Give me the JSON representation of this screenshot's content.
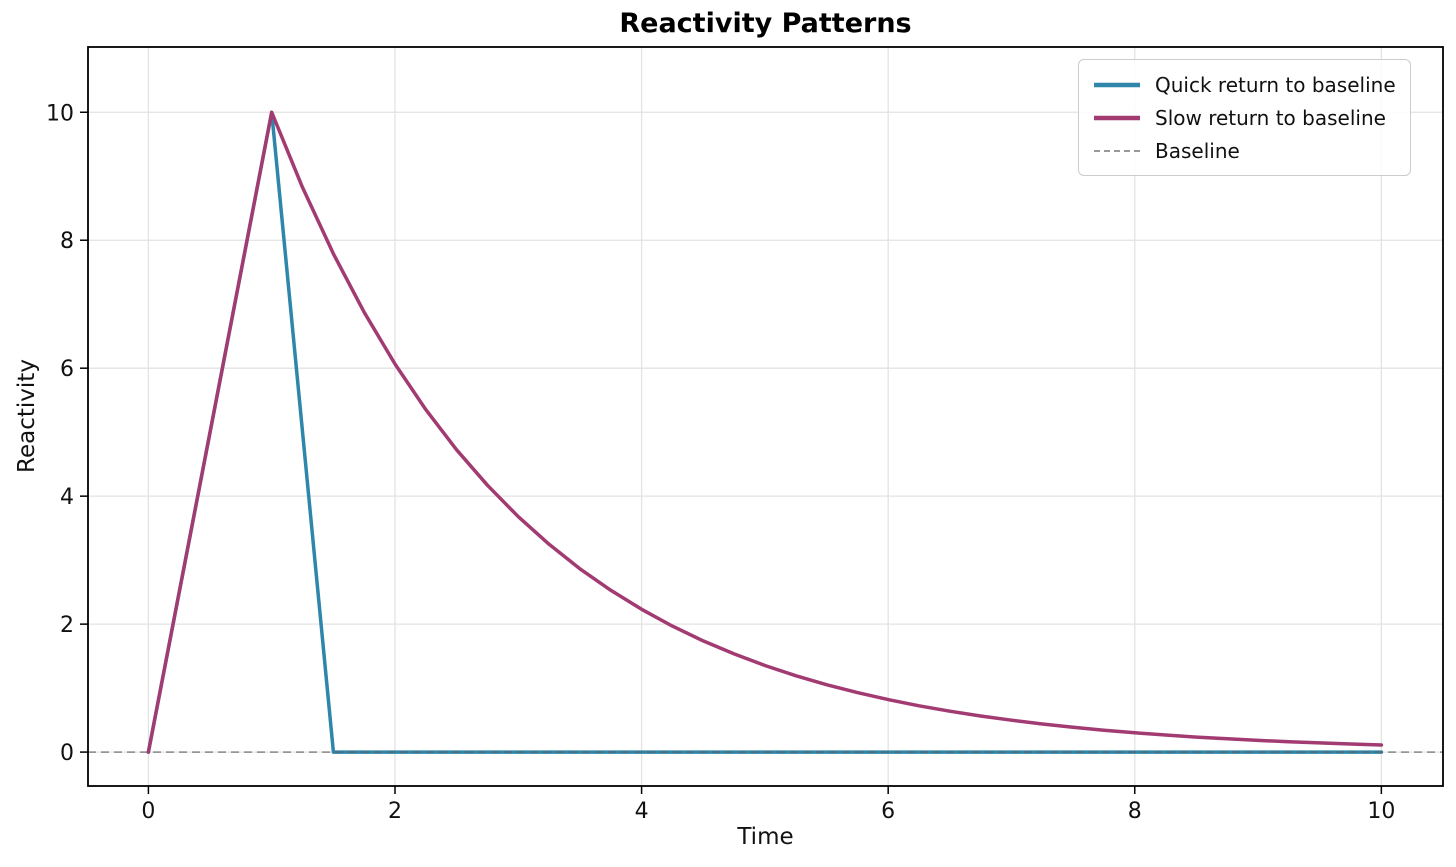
{
  "chart_data": {
    "type": "line",
    "title": "Reactivity Patterns",
    "xlabel": "Time",
    "ylabel": "Reactivity",
    "xlim": [
      -0.49,
      10.5
    ],
    "ylim": [
      -0.53,
      11.02
    ],
    "xticks": [
      0,
      2,
      4,
      6,
      8,
      10
    ],
    "yticks": [
      0,
      2,
      4,
      6,
      8,
      10
    ],
    "grid": true,
    "grid_color": "#e3e3e3",
    "axis_color": "#000000",
    "background_color": "#ffffff",
    "legend_position": "upper right",
    "series": [
      {
        "name": "Quick return to baseline",
        "kind": "line",
        "color": "#2E86AB",
        "linestyle": "solid",
        "linewidth": 3.5,
        "points": [
          [
            0,
            0
          ],
          [
            1,
            10
          ],
          [
            1.5,
            0
          ],
          [
            10,
            0
          ]
        ]
      },
      {
        "name": "Slow return to baseline",
        "kind": "line",
        "color": "#A23B72",
        "linestyle": "solid",
        "linewidth": 3.5,
        "points": [
          [
            0,
            0
          ],
          [
            1,
            10
          ],
          [
            1.25,
            8.825
          ],
          [
            1.5,
            7.788
          ],
          [
            1.75,
            6.873
          ],
          [
            2,
            6.065
          ],
          [
            2.25,
            5.353
          ],
          [
            2.5,
            4.724
          ],
          [
            2.75,
            4.169
          ],
          [
            3,
            3.679
          ],
          [
            3.25,
            3.247
          ],
          [
            3.5,
            2.865
          ],
          [
            3.75,
            2.528
          ],
          [
            4,
            2.231
          ],
          [
            4.25,
            1.969
          ],
          [
            4.5,
            1.738
          ],
          [
            4.75,
            1.534
          ],
          [
            5,
            1.353
          ],
          [
            5.25,
            1.194
          ],
          [
            5.5,
            1.054
          ],
          [
            5.75,
            0.93
          ],
          [
            6,
            0.821
          ],
          [
            6.25,
            0.724
          ],
          [
            6.5,
            0.639
          ],
          [
            6.75,
            0.564
          ],
          [
            7,
            0.498
          ],
          [
            7.25,
            0.439
          ],
          [
            7.5,
            0.388
          ],
          [
            7.75,
            0.342
          ],
          [
            8,
            0.302
          ],
          [
            8.25,
            0.267
          ],
          [
            8.5,
            0.235
          ],
          [
            8.75,
            0.208
          ],
          [
            9,
            0.183
          ],
          [
            9.25,
            0.162
          ],
          [
            9.5,
            0.143
          ],
          [
            9.75,
            0.126
          ],
          [
            10,
            0.111
          ]
        ]
      },
      {
        "name": "Baseline",
        "kind": "hline",
        "color": "#999999",
        "overlay_color": "rgba(95,95,95,0.6)",
        "linestyle": "dashed",
        "linewidth": 1.8,
        "y": 0
      }
    ]
  }
}
